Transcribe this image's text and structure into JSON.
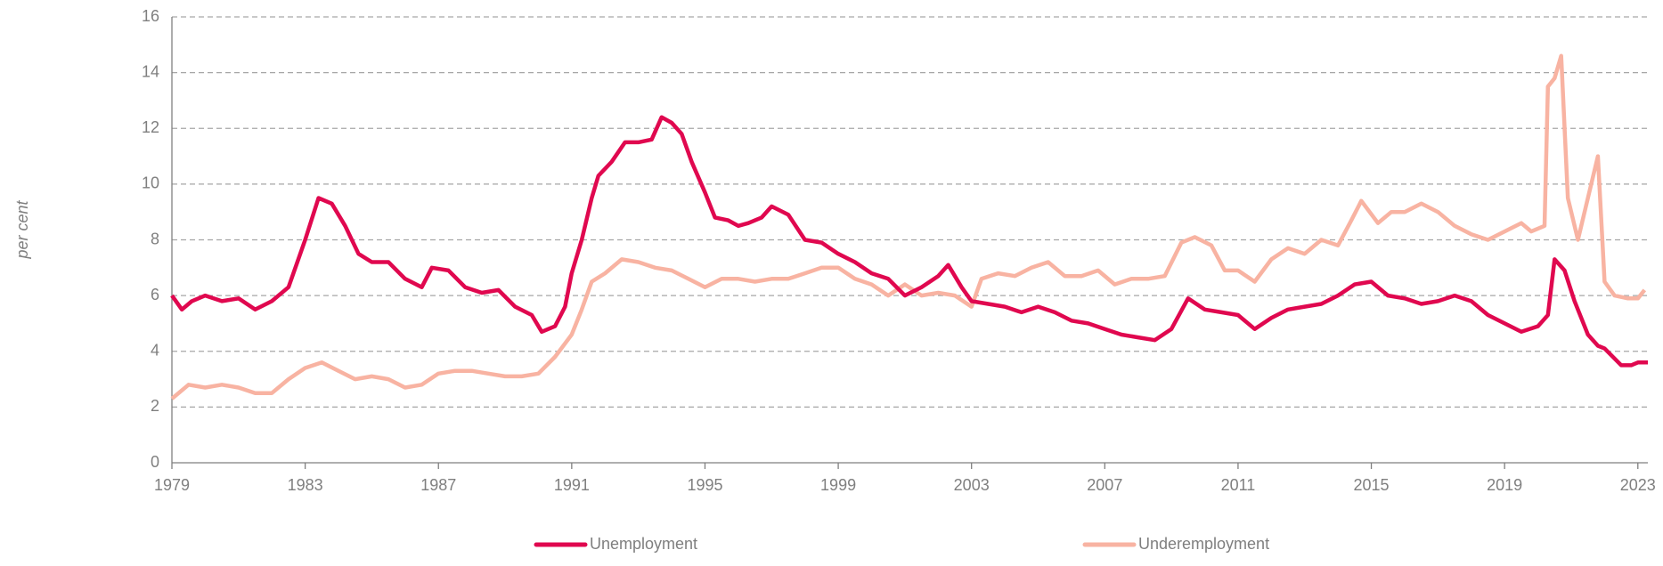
{
  "chart_data": {
    "type": "line",
    "ylabel": "per cent",
    "xlim": [
      1979,
      2023.3
    ],
    "xticks": [
      1979,
      1983,
      1987,
      1991,
      1995,
      1999,
      2003,
      2007,
      2011,
      2015,
      2019,
      2023
    ],
    "ylim": [
      0,
      16
    ],
    "yticks": [
      0,
      2,
      4,
      6,
      8,
      10,
      12,
      14,
      16
    ],
    "grid": true,
    "legend": "bottom",
    "series": [
      {
        "name": "Unemployment",
        "color": "#e0084f",
        "x": [
          1979.0,
          1979.3,
          1979.6,
          1980.0,
          1980.5,
          1981.0,
          1981.5,
          1982.0,
          1982.5,
          1983.0,
          1983.4,
          1983.8,
          1984.2,
          1984.6,
          1985.0,
          1985.5,
          1986.0,
          1986.5,
          1986.8,
          1987.3,
          1987.8,
          1988.3,
          1988.8,
          1989.3,
          1989.8,
          1990.1,
          1990.5,
          1990.8,
          1991.0,
          1991.3,
          1991.6,
          1991.8,
          1992.2,
          1992.6,
          1993.0,
          1993.4,
          1993.7,
          1994.0,
          1994.3,
          1994.6,
          1995.0,
          1995.3,
          1995.7,
          1996.0,
          1996.3,
          1996.7,
          1997.0,
          1997.5,
          1998.0,
          1998.5,
          1999.0,
          1999.5,
          2000.0,
          2000.5,
          2001.0,
          2001.5,
          2002.0,
          2002.3,
          2002.7,
          2003.0,
          2003.5,
          2004.0,
          2004.5,
          2005.0,
          2005.5,
          2006.0,
          2006.5,
          2007.0,
          2007.5,
          2008.0,
          2008.5,
          2009.0,
          2009.5,
          2010.0,
          2010.5,
          2011.0,
          2011.5,
          2012.0,
          2012.5,
          2013.0,
          2013.5,
          2014.0,
          2014.5,
          2015.0,
          2015.5,
          2016.0,
          2016.5,
          2017.0,
          2017.5,
          2018.0,
          2018.5,
          2019.0,
          2019.5,
          2020.0,
          2020.3,
          2020.5,
          2020.8,
          2021.1,
          2021.5,
          2021.8,
          2022.0,
          2022.5,
          2022.8,
          2023.0,
          2023.3
        ],
        "values": [
          6.0,
          5.5,
          5.8,
          6.0,
          5.8,
          5.9,
          5.5,
          5.8,
          6.3,
          8.0,
          9.5,
          9.3,
          8.5,
          7.5,
          7.2,
          7.2,
          6.6,
          6.3,
          7.0,
          6.9,
          6.3,
          6.1,
          6.2,
          5.6,
          5.3,
          4.7,
          4.9,
          5.6,
          6.8,
          8.0,
          9.5,
          10.3,
          10.8,
          11.5,
          11.5,
          11.6,
          12.4,
          12.2,
          11.8,
          10.8,
          9.7,
          8.8,
          8.7,
          8.5,
          8.6,
          8.8,
          9.2,
          8.9,
          8.0,
          7.9,
          7.5,
          7.2,
          6.8,
          6.6,
          6.0,
          6.3,
          6.7,
          7.1,
          6.3,
          5.8,
          5.7,
          5.6,
          5.4,
          5.6,
          5.4,
          5.1,
          5.0,
          4.8,
          4.6,
          4.5,
          4.4,
          4.8,
          5.9,
          5.5,
          5.4,
          5.3,
          4.8,
          5.2,
          5.5,
          5.6,
          5.7,
          6.0,
          6.4,
          6.5,
          6.0,
          5.9,
          5.7,
          5.8,
          6.0,
          5.8,
          5.3,
          5.0,
          4.7,
          4.9,
          5.3,
          7.3,
          6.9,
          5.8,
          4.6,
          4.2,
          4.1,
          3.5,
          3.5,
          3.6,
          3.6
        ]
      },
      {
        "name": "Underemployment",
        "color": "#f8b3a2",
        "x": [
          1979.0,
          1979.5,
          1980.0,
          1980.5,
          1981.0,
          1981.5,
          1982.0,
          1982.5,
          1983.0,
          1983.5,
          1984.0,
          1984.5,
          1985.0,
          1985.5,
          1986.0,
          1986.5,
          1987.0,
          1987.5,
          1988.0,
          1988.5,
          1989.0,
          1989.5,
          1990.0,
          1990.5,
          1991.0,
          1991.3,
          1991.6,
          1992.0,
          1992.5,
          1993.0,
          1993.5,
          1994.0,
          1994.5,
          1995.0,
          1995.5,
          1996.0,
          1996.5,
          1997.0,
          1997.5,
          1998.0,
          1998.5,
          1999.0,
          1999.5,
          2000.0,
          2000.5,
          2001.0,
          2001.5,
          2002.0,
          2002.5,
          2003.0,
          2003.3,
          2003.8,
          2004.3,
          2004.8,
          2005.3,
          2005.8,
          2006.3,
          2006.8,
          2007.3,
          2007.8,
          2008.3,
          2008.8,
          2009.3,
          2009.7,
          2010.2,
          2010.6,
          2011.0,
          2011.5,
          2012.0,
          2012.5,
          2013.0,
          2013.5,
          2014.0,
          2014.4,
          2014.7,
          2015.2,
          2015.6,
          2016.0,
          2016.5,
          2017.0,
          2017.5,
          2018.0,
          2018.5,
          2019.0,
          2019.5,
          2019.8,
          2020.2,
          2020.3,
          2020.5,
          2020.7,
          2020.9,
          2021.2,
          2021.5,
          2021.8,
          2022.0,
          2022.3,
          2022.7,
          2023.0,
          2023.2
        ],
        "values": [
          2.3,
          2.8,
          2.7,
          2.8,
          2.7,
          2.5,
          2.5,
          3.0,
          3.4,
          3.6,
          3.3,
          3.0,
          3.1,
          3.0,
          2.7,
          2.8,
          3.2,
          3.3,
          3.3,
          3.2,
          3.1,
          3.1,
          3.2,
          3.8,
          4.6,
          5.5,
          6.5,
          6.8,
          7.3,
          7.2,
          7.0,
          6.9,
          6.6,
          6.3,
          6.6,
          6.6,
          6.5,
          6.6,
          6.6,
          6.8,
          7.0,
          7.0,
          6.6,
          6.4,
          6.0,
          6.4,
          6.0,
          6.1,
          6.0,
          5.6,
          6.6,
          6.8,
          6.7,
          7.0,
          7.2,
          6.7,
          6.7,
          6.9,
          6.4,
          6.6,
          6.6,
          6.7,
          7.9,
          8.1,
          7.8,
          6.9,
          6.9,
          6.5,
          7.3,
          7.7,
          7.5,
          8.0,
          7.8,
          8.7,
          9.4,
          8.6,
          9.0,
          9.0,
          9.3,
          9.0,
          8.5,
          8.2,
          8.0,
          8.3,
          8.6,
          8.3,
          8.5,
          13.5,
          13.8,
          14.6,
          9.5,
          8.0,
          9.5,
          11.0,
          6.5,
          6.0,
          5.9,
          5.9,
          6.2
        ]
      }
    ]
  }
}
